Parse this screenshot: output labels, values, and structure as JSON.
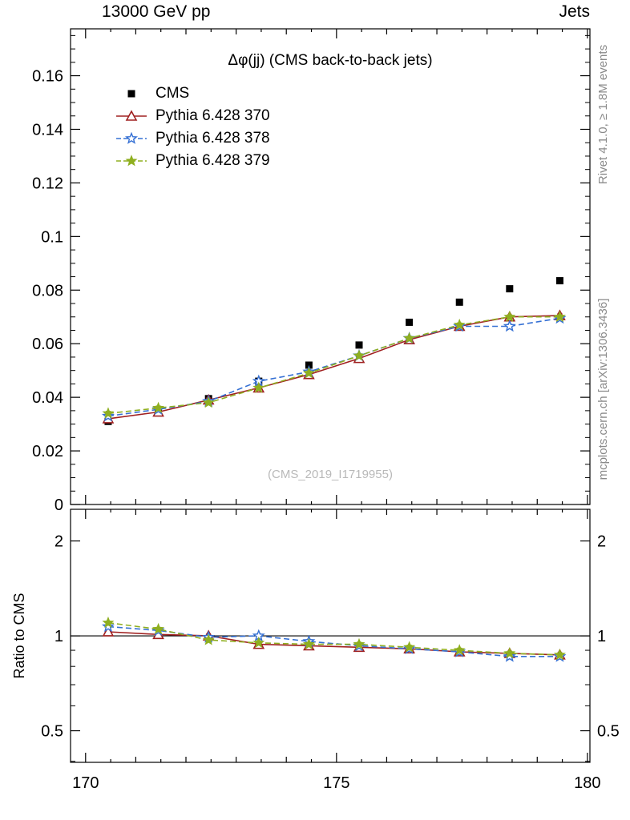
{
  "header": {
    "left": "13000 GeV pp",
    "right": "Jets"
  },
  "side_labels": {
    "rivet": "Rivet 4.1.0, ≥ 1.8M events",
    "mcplots": "mcplots.cern.ch [arXiv:1306.3436]",
    "ratio": "Ratio to CMS"
  },
  "watermark": "(CMS_2019_I1719955)",
  "chart_data": {
    "type": "line",
    "title": "Δφ(jj) (CMS back-to-back jets)",
    "xlabel": "",
    "ylabel": "",
    "ratio_label": "Ratio to CMS",
    "x": [
      170.45,
      171.45,
      172.45,
      173.45,
      174.45,
      175.45,
      176.45,
      177.45,
      178.45,
      179.45
    ],
    "xlim": [
      169.7,
      180.05
    ],
    "ylim": [
      0,
      0.1775
    ],
    "x_ticks": [
      170,
      175,
      180
    ],
    "y_ticks": [
      0,
      0.02,
      0.04,
      0.06,
      0.08,
      0.1,
      0.12,
      0.14,
      0.16
    ],
    "ratio_ticks": [
      0.5,
      1,
      2
    ],
    "ratio_minor_ticks": [
      0.4,
      0.6,
      0.7,
      0.8,
      0.9
    ],
    "ratio_ylim": [
      0.397,
      2.52
    ],
    "grid": false,
    "legend_position": "top-left",
    "series": [
      {
        "name": "CMS",
        "color": "#000000",
        "marker": "square",
        "line": "none",
        "err": 0.0005,
        "values": [
          0.031,
          0.0345,
          0.0395,
          0.046,
          0.052,
          0.0595,
          0.068,
          0.0755,
          0.0805,
          0.0835
        ]
      },
      {
        "name": "Pythia 6.428 370",
        "color": "#a02020",
        "marker": "triangle-open",
        "line": "solid",
        "err": 0.0008,
        "ratio_err": 0.015,
        "values": [
          0.032,
          0.0345,
          0.039,
          0.0435,
          0.0485,
          0.0545,
          0.0615,
          0.0665,
          0.07,
          0.0705
        ],
        "ratio": [
          1.03,
          1.01,
          1.0,
          0.94,
          0.93,
          0.92,
          0.91,
          0.89,
          0.88,
          0.87
        ]
      },
      {
        "name": "Pythia 6.428 378",
        "color": "#3570d4",
        "marker": "star-open",
        "line": "dashed",
        "err": 0.0008,
        "ratio_err": 0.015,
        "values": [
          0.033,
          0.0355,
          0.0385,
          0.046,
          0.0495,
          0.0555,
          0.062,
          0.0665,
          0.0665,
          0.0695
        ],
        "ratio": [
          1.07,
          1.04,
          0.99,
          1.0,
          0.96,
          0.93,
          0.91,
          0.89,
          0.86,
          0.86
        ]
      },
      {
        "name": "Pythia 6.428 379",
        "color": "#8faf20",
        "marker": "star",
        "line": "dashed",
        "err": 0.0008,
        "ratio_err": 0.015,
        "values": [
          0.034,
          0.036,
          0.038,
          0.0435,
          0.049,
          0.0555,
          0.062,
          0.067,
          0.07,
          0.07
        ],
        "ratio": [
          1.1,
          1.05,
          0.97,
          0.95,
          0.94,
          0.94,
          0.92,
          0.9,
          0.88,
          0.87
        ]
      }
    ]
  }
}
